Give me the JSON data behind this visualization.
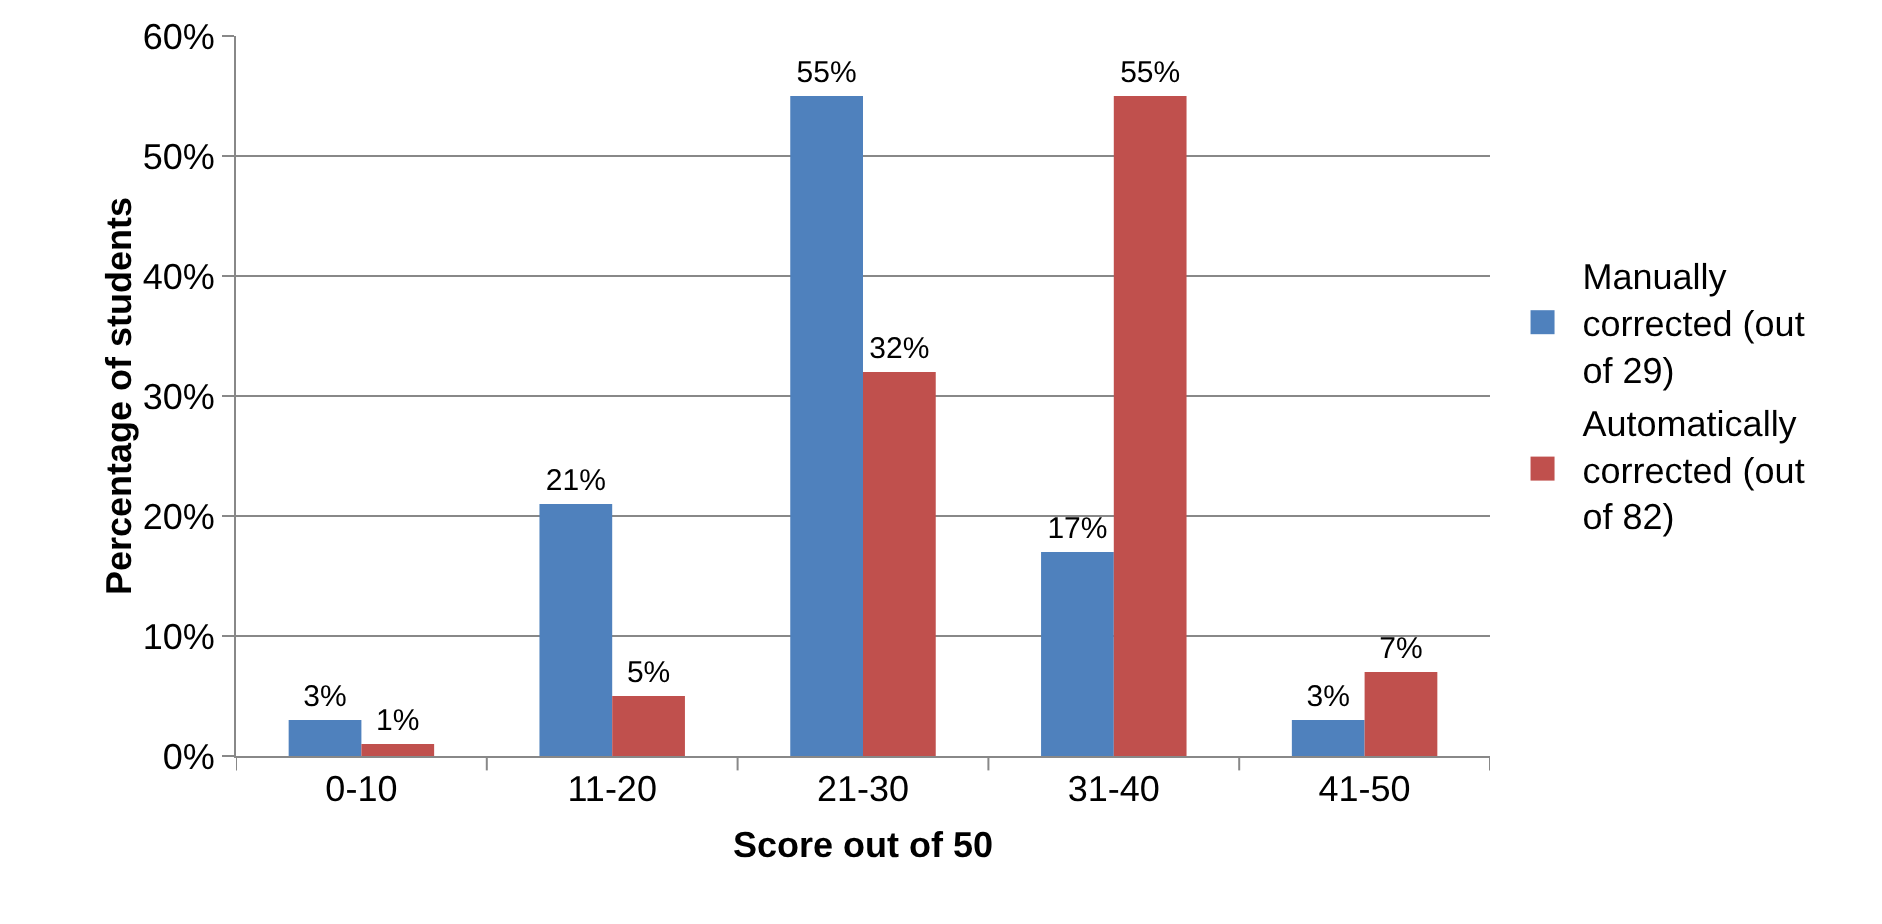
{
  "chart_data": {
    "type": "bar",
    "xlabel": "Score out of 50",
    "ylabel": "Percentage of students",
    "categories": [
      "0-10",
      "11-20",
      "21-30",
      "31-40",
      "41-50"
    ],
    "series": [
      {
        "name": "Manually corrected (out of 29)",
        "color": "#4f81bd",
        "values": [
          3,
          21,
          55,
          17,
          3
        ],
        "value_labels": [
          "3%",
          "21%",
          "55%",
          "17%",
          "3%"
        ]
      },
      {
        "name": "Automatically corrected (out of 82)",
        "color": "#c0504d",
        "values": [
          1,
          5,
          32,
          55,
          7
        ],
        "value_labels": [
          "1%",
          "5%",
          "32%",
          "55%",
          "7%"
        ]
      }
    ],
    "ylim": [
      0,
      60
    ],
    "yticks": [
      {
        "value": 0,
        "label": "0%"
      },
      {
        "value": 10,
        "label": "10%"
      },
      {
        "value": 20,
        "label": "20%"
      },
      {
        "value": 30,
        "label": "30%"
      },
      {
        "value": 40,
        "label": "40%"
      },
      {
        "value": 50,
        "label": "50%"
      },
      {
        "value": 60,
        "label": "60%"
      }
    ],
    "grid": "y",
    "legend": "right"
  }
}
